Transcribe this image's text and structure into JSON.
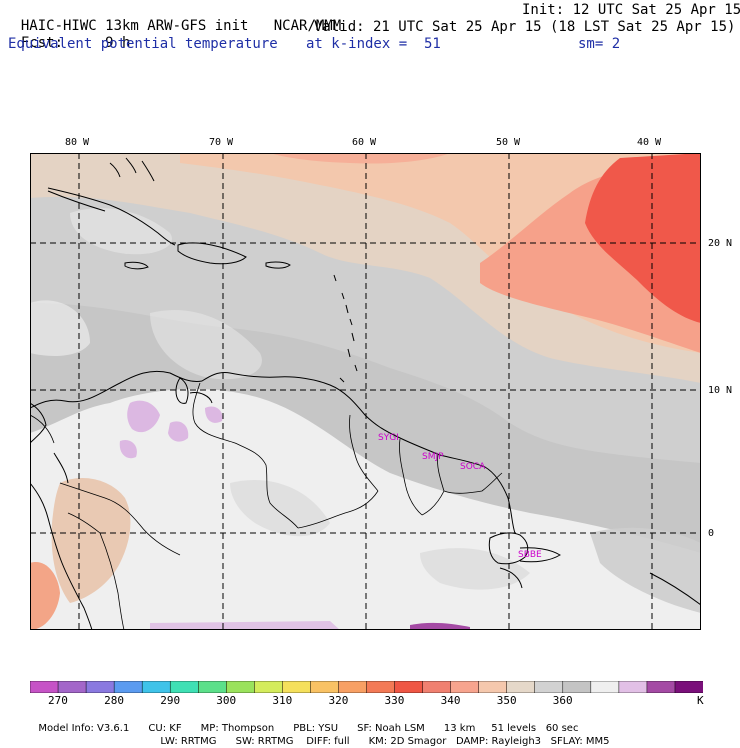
{
  "header": {
    "model_title": "HAIC-HIWC 13km ARW-GFS init",
    "org": "NCAR/MMM",
    "init": "Init: 12 UTC Sat 25 Apr 15",
    "fcst_label": "Fcst:",
    "fcst_value": "9 h",
    "valid": "Valid: 21 UTC Sat 25 Apr 15 (18 LST Sat 25 Apr 15)",
    "field": "Equivalent potential temperature",
    "level": "at k-index =  51",
    "smoothing": "sm= 2"
  },
  "map": {
    "lon_labels": [
      "80 W",
      "70 W",
      "60 W",
      "50 W",
      "40 W"
    ],
    "lat_labels": [
      "20 N",
      "10 N",
      "0"
    ],
    "stations": [
      "SYGI",
      "SMJP",
      "SOCA",
      "SBBE"
    ]
  },
  "colorbar": {
    "colors": [
      "#c653c6",
      "#a366c9",
      "#8a79e0",
      "#5b9bf0",
      "#3fc3e9",
      "#3fe0b4",
      "#5ce08a",
      "#9ae25c",
      "#d4ec5c",
      "#f5e05c",
      "#f9c264",
      "#f8a064",
      "#f37a56",
      "#ef5644",
      "#f08070",
      "#f7a48e",
      "#f5c8ad",
      "#e5d8c9",
      "#d2d2d2",
      "#c4c4c4",
      "#efefef",
      "#e2c0e6",
      "#a44aa4",
      "#7a0f7a"
    ],
    "tick_labels": [
      "270",
      "280",
      "290",
      "300",
      "310",
      "320",
      "330",
      "340",
      "350",
      "360"
    ],
    "unit": "K"
  },
  "footer": {
    "line1": [
      "Model Info: V3.6.1",
      "CU: KF",
      "MP: Thompson",
      "PBL: YSU",
      "SF: Noah LSM",
      "13 km",
      "51 levels",
      "60 sec"
    ],
    "line2": [
      "LW: RRTMG",
      "SW: RRTMG",
      "DIFF: full",
      "KM: 2D Smagor",
      "DAMP: Rayleigh3",
      "SFLAY: MM5"
    ]
  }
}
